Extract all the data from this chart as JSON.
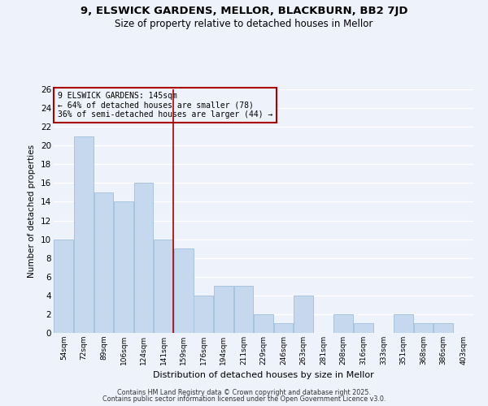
{
  "title1": "9, ELSWICK GARDENS, MELLOR, BLACKBURN, BB2 7JD",
  "title2": "Size of property relative to detached houses in Mellor",
  "xlabel": "Distribution of detached houses by size in Mellor",
  "ylabel": "Number of detached properties",
  "categories": [
    "54sqm",
    "72sqm",
    "89sqm",
    "106sqm",
    "124sqm",
    "141sqm",
    "159sqm",
    "176sqm",
    "194sqm",
    "211sqm",
    "229sqm",
    "246sqm",
    "263sqm",
    "281sqm",
    "298sqm",
    "316sqm",
    "333sqm",
    "351sqm",
    "368sqm",
    "386sqm",
    "403sqm"
  ],
  "values": [
    10,
    21,
    15,
    14,
    16,
    10,
    9,
    4,
    5,
    5,
    2,
    1,
    4,
    0,
    2,
    1,
    0,
    2,
    1,
    1,
    0
  ],
  "bar_color": "#c5d8ed",
  "bar_edge_color": "#a8c4de",
  "reference_line_index": 5,
  "reference_line_color": "#aa0000",
  "annotation_line1": "9 ELSWICK GARDENS: 145sqm",
  "annotation_line2": "← 64% of detached houses are smaller (78)",
  "annotation_line3": "36% of semi-detached houses are larger (44) →",
  "annotation_box_edge_color": "#aa0000",
  "ylim": [
    0,
    26
  ],
  "yticks": [
    0,
    2,
    4,
    6,
    8,
    10,
    12,
    14,
    16,
    18,
    20,
    22,
    24,
    26
  ],
  "background_color": "#eef2fa",
  "grid_color": "#ffffff",
  "footer1": "Contains HM Land Registry data © Crown copyright and database right 2025.",
  "footer2": "Contains public sector information licensed under the Open Government Licence v3.0.",
  "title_fontsize": 9.5,
  "subtitle_fontsize": 8.5
}
